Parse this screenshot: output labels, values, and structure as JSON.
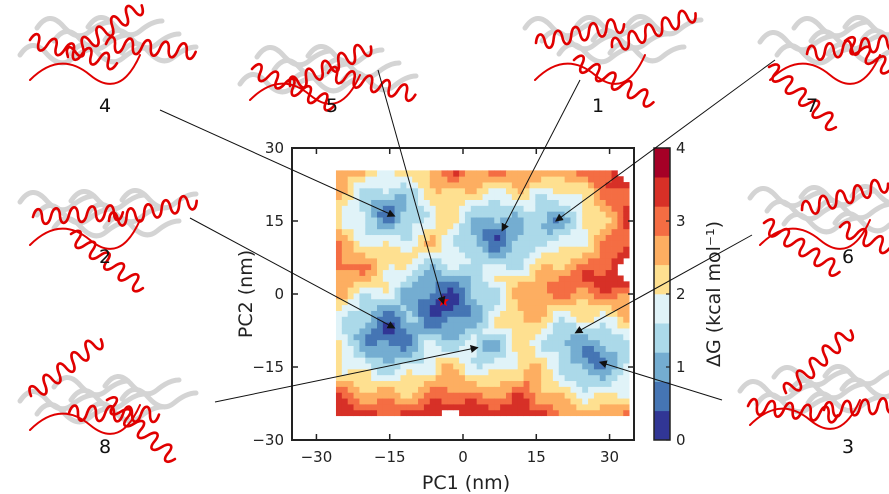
{
  "chart_data": {
    "type": "heatmap",
    "title": "",
    "xlabel": "PC1 (nm)",
    "ylabel": "PC2 (nm)",
    "xlim": [
      -35,
      35
    ],
    "ylim": [
      -30,
      30
    ],
    "x_ticks": [
      "-30",
      "-15",
      "0",
      "15",
      "30"
    ],
    "y_ticks": [
      "30",
      "15",
      "0",
      "-15",
      "-30"
    ],
    "colorbar": {
      "label": "ΔG (kcal mol⁻¹)",
      "range": [
        0,
        4
      ],
      "ticks": [
        "4",
        "3",
        "2",
        "1",
        "0"
      ],
      "colors": [
        "#313695",
        "#4575b4",
        "#74add1",
        "#abd9e9",
        "#e0f3f8",
        "#fee090",
        "#fdae61",
        "#f46d43",
        "#d73027",
        "#a50026"
      ]
    },
    "grid": false,
    "minimum_marker": {
      "x": -4,
      "y": -1.5,
      "color": "#ff0000"
    },
    "basins": [
      {
        "x": -15,
        "y": 17,
        "dg": 0.6
      },
      {
        "x": -15,
        "y": -8,
        "dg": 0.2
      },
      {
        "x": -4,
        "y": -2,
        "dg": 0.0
      },
      {
        "x": 7,
        "y": 12,
        "dg": 0.4
      },
      {
        "x": 18,
        "y": 15,
        "dg": 0.8
      },
      {
        "x": 27,
        "y": -13,
        "dg": 0.5
      },
      {
        "x": 22,
        "y": -10,
        "dg": 0.9
      },
      {
        "x": 5,
        "y": -11,
        "dg": 1.0
      }
    ],
    "states": [
      {
        "label": "1",
        "x": 8,
        "y": 13
      },
      {
        "label": "2",
        "x": -14,
        "y": -7
      },
      {
        "label": "3",
        "x": 28,
        "y": -14
      },
      {
        "label": "4",
        "x": -14,
        "y": 16
      },
      {
        "label": "5",
        "x": -4,
        "y": -2
      },
      {
        "label": "6",
        "x": 23,
        "y": -8
      },
      {
        "label": "7",
        "x": 19,
        "y": 15
      },
      {
        "label": "8",
        "x": 3,
        "y": -11
      }
    ]
  }
}
